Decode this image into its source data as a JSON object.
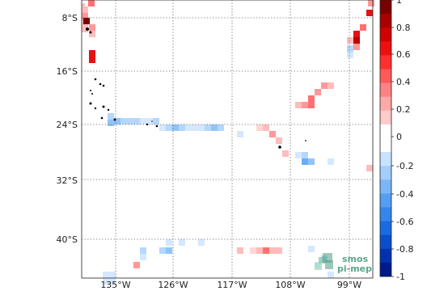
{
  "map": {
    "lat_labels": [
      "8°S",
      "16°S",
      "24°S",
      "32°S",
      "40°S"
    ],
    "lon_labels": [
      "135°W",
      "126°W",
      "117°W",
      "108°W",
      "99°W"
    ]
  },
  "colorbar": {
    "ticks": [
      "1",
      "0.8",
      "0.6",
      "0.4",
      "0.2",
      "0",
      "-0.2",
      "-0.4",
      "-0.6",
      "-0.8",
      "-1"
    ],
    "colors_top_to_bottom": [
      "#7a0000",
      "#a80000",
      "#d00000",
      "#ee1010",
      "#ff3030",
      "#ff5a5a",
      "#ff8282",
      "#ffa8a8",
      "#ffcaca",
      "#ffffff",
      "#ffffff",
      "#c8e2ff",
      "#a2cdfc",
      "#7cb6f8",
      "#559ef3",
      "#3386ec",
      "#1a6be0",
      "#0a4fcc",
      "#0032b0",
      "#001a8a"
    ]
  },
  "logo": {
    "line1": "smos",
    "line2": "pi-mep"
  }
}
